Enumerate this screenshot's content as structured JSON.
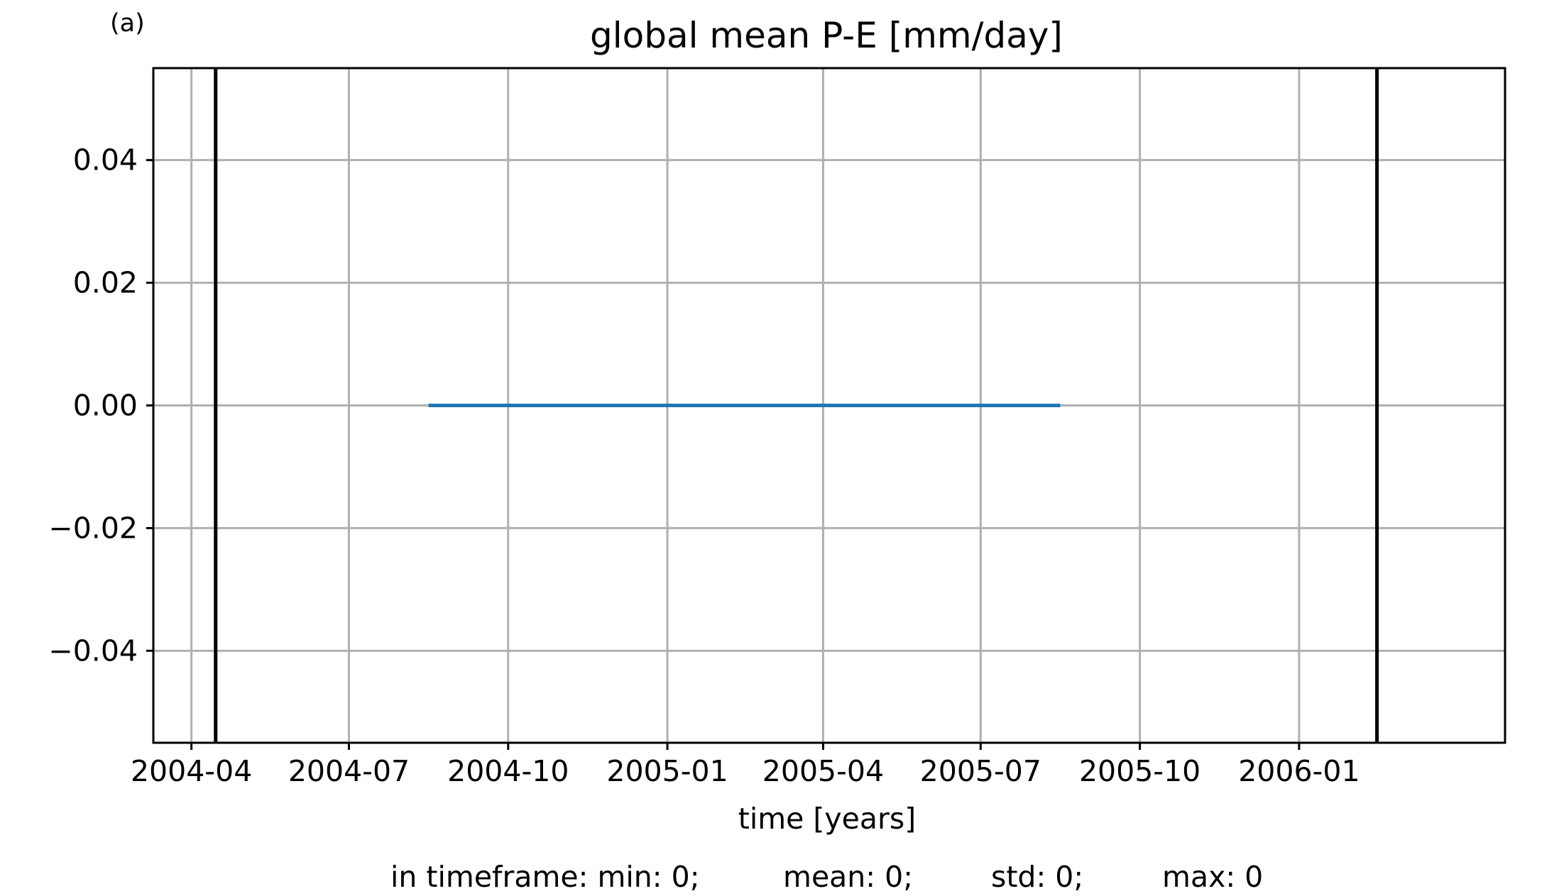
{
  "panel_label": "(a)",
  "chart_data": {
    "type": "line",
    "title": "global mean P-E [mm/day]",
    "xlabel": "time [years]",
    "ylabel": "",
    "x_axis_type": "date",
    "xlim": [
      "2004-03-10",
      "2006-04-30"
    ],
    "ylim": [
      -0.055,
      0.055
    ],
    "x_ticks": [
      "2004-04-01",
      "2004-07-01",
      "2004-10-01",
      "2005-01-01",
      "2005-04-01",
      "2005-07-01",
      "2005-10-01",
      "2006-01-01"
    ],
    "x_tick_labels": [
      "2004-04",
      "2004-07",
      "2004-10",
      "2005-01",
      "2005-04",
      "2005-07",
      "2005-10",
      "2006-01"
    ],
    "y_ticks": [
      -0.04,
      -0.02,
      0.0,
      0.02,
      0.04
    ],
    "y_tick_labels": [
      "−0.04",
      "−0.02",
      "0.00",
      "0.02",
      "0.04"
    ],
    "grid": true,
    "legend": "none",
    "series": [
      {
        "x": [
          "2004-08-16",
          "2005-08-16"
        ],
        "y": [
          0.0,
          0.0
        ],
        "color": "#1f77b4"
      }
    ],
    "vertical_markers": [
      {
        "x": "2004-04-15",
        "color": "#000000"
      },
      {
        "x": "2006-02-15",
        "color": "#000000"
      }
    ]
  },
  "stats": {
    "prefix": "in timeframe: min: 0;",
    "mean": "mean: 0;",
    "std": "std: 0;",
    "max": "max: 0"
  }
}
